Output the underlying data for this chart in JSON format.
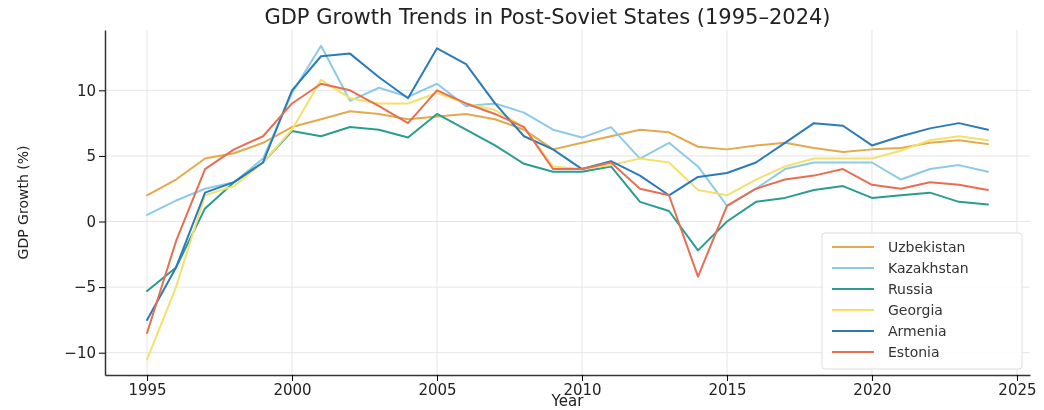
{
  "chart_data": {
    "type": "line",
    "title": "GDP Growth Trends in Post-Soviet States (1995–2024)",
    "xlabel": "Year",
    "ylabel": "GDP Growth (%)",
    "x": [
      1995,
      1996,
      1997,
      1998,
      1999,
      2000,
      2001,
      2002,
      2003,
      2004,
      2005,
      2006,
      2007,
      2008,
      2009,
      2010,
      2011,
      2012,
      2013,
      2014,
      2015,
      2016,
      2017,
      2018,
      2019,
      2020,
      2021,
      2022,
      2023,
      2024
    ],
    "series": [
      {
        "name": "Uzbekistan",
        "color": "#e3a94b",
        "values": [
          2.0,
          3.2,
          4.8,
          5.2,
          6.0,
          7.2,
          7.8,
          8.4,
          8.2,
          7.8,
          8.0,
          8.2,
          7.8,
          7.0,
          5.5,
          6.0,
          6.5,
          7.0,
          6.8,
          5.7,
          5.5,
          5.8,
          6.0,
          5.6,
          5.3,
          5.5,
          5.6,
          6.0,
          6.2,
          5.9
        ]
      },
      {
        "name": "Kazakhstan",
        "color": "#8ecae6",
        "values": [
          0.5,
          1.6,
          2.5,
          3.0,
          4.8,
          9.8,
          13.4,
          9.2,
          10.2,
          9.5,
          10.5,
          8.8,
          9.0,
          8.3,
          7.0,
          6.4,
          7.2,
          4.8,
          6.0,
          4.2,
          1.2,
          2.5,
          4.0,
          4.5,
          4.5,
          4.5,
          3.2,
          4.0,
          4.3,
          3.8
        ]
      },
      {
        "name": "Russia",
        "color": "#2a9d8f",
        "values": [
          -5.3,
          -3.5,
          1.0,
          3.0,
          4.5,
          6.9,
          6.5,
          7.2,
          7.0,
          6.4,
          8.2,
          7.0,
          5.8,
          4.4,
          3.8,
          3.8,
          4.2,
          1.5,
          0.8,
          -2.2,
          0.0,
          1.5,
          1.8,
          2.4,
          2.7,
          1.8,
          2.0,
          2.2,
          1.5,
          1.3
        ]
      },
      {
        "name": "Georgia",
        "color": "#f4e06d",
        "values": [
          -10.5,
          -5.0,
          2.0,
          2.7,
          4.5,
          7.0,
          10.8,
          9.4,
          9.0,
          9.0,
          9.8,
          9.0,
          8.5,
          7.2,
          4.2,
          4.0,
          4.3,
          4.8,
          4.5,
          2.4,
          2.0,
          3.2,
          4.2,
          4.8,
          4.8,
          4.8,
          5.4,
          6.2,
          6.5,
          6.2
        ]
      },
      {
        "name": "Armenia",
        "color": "#2b7bba",
        "values": [
          -7.5,
          -3.5,
          2.2,
          3.0,
          4.5,
          10.0,
          12.6,
          12.8,
          11.0,
          9.4,
          13.2,
          12.0,
          9.0,
          6.5,
          5.5,
          4.0,
          4.6,
          3.5,
          2.0,
          3.4,
          3.7,
          4.5,
          6.0,
          7.5,
          7.3,
          5.8,
          6.5,
          7.1,
          7.5,
          7.0
        ]
      },
      {
        "name": "Estonia",
        "color": "#e76f51",
        "values": [
          -8.5,
          -1.5,
          4.0,
          5.5,
          6.5,
          9.0,
          10.5,
          10.0,
          8.8,
          7.5,
          10.0,
          9.0,
          8.2,
          7.2,
          4.0,
          4.0,
          4.5,
          2.5,
          2.0,
          -4.2,
          1.2,
          2.5,
          3.2,
          3.5,
          4.0,
          2.8,
          2.5,
          3.0,
          2.8,
          2.4
        ]
      }
    ],
    "xlim": [
      1993.55,
      2025.45
    ],
    "xticks": [
      1995,
      2000,
      2005,
      2010,
      2015,
      2020,
      2025
    ],
    "ylim": [
      -11.7,
      14.6
    ],
    "yticks": [
      -10,
      -5,
      0,
      5,
      10
    ],
    "grid": true,
    "legend": "bottom right",
    "line_style": "solid",
    "marker": "none"
  }
}
